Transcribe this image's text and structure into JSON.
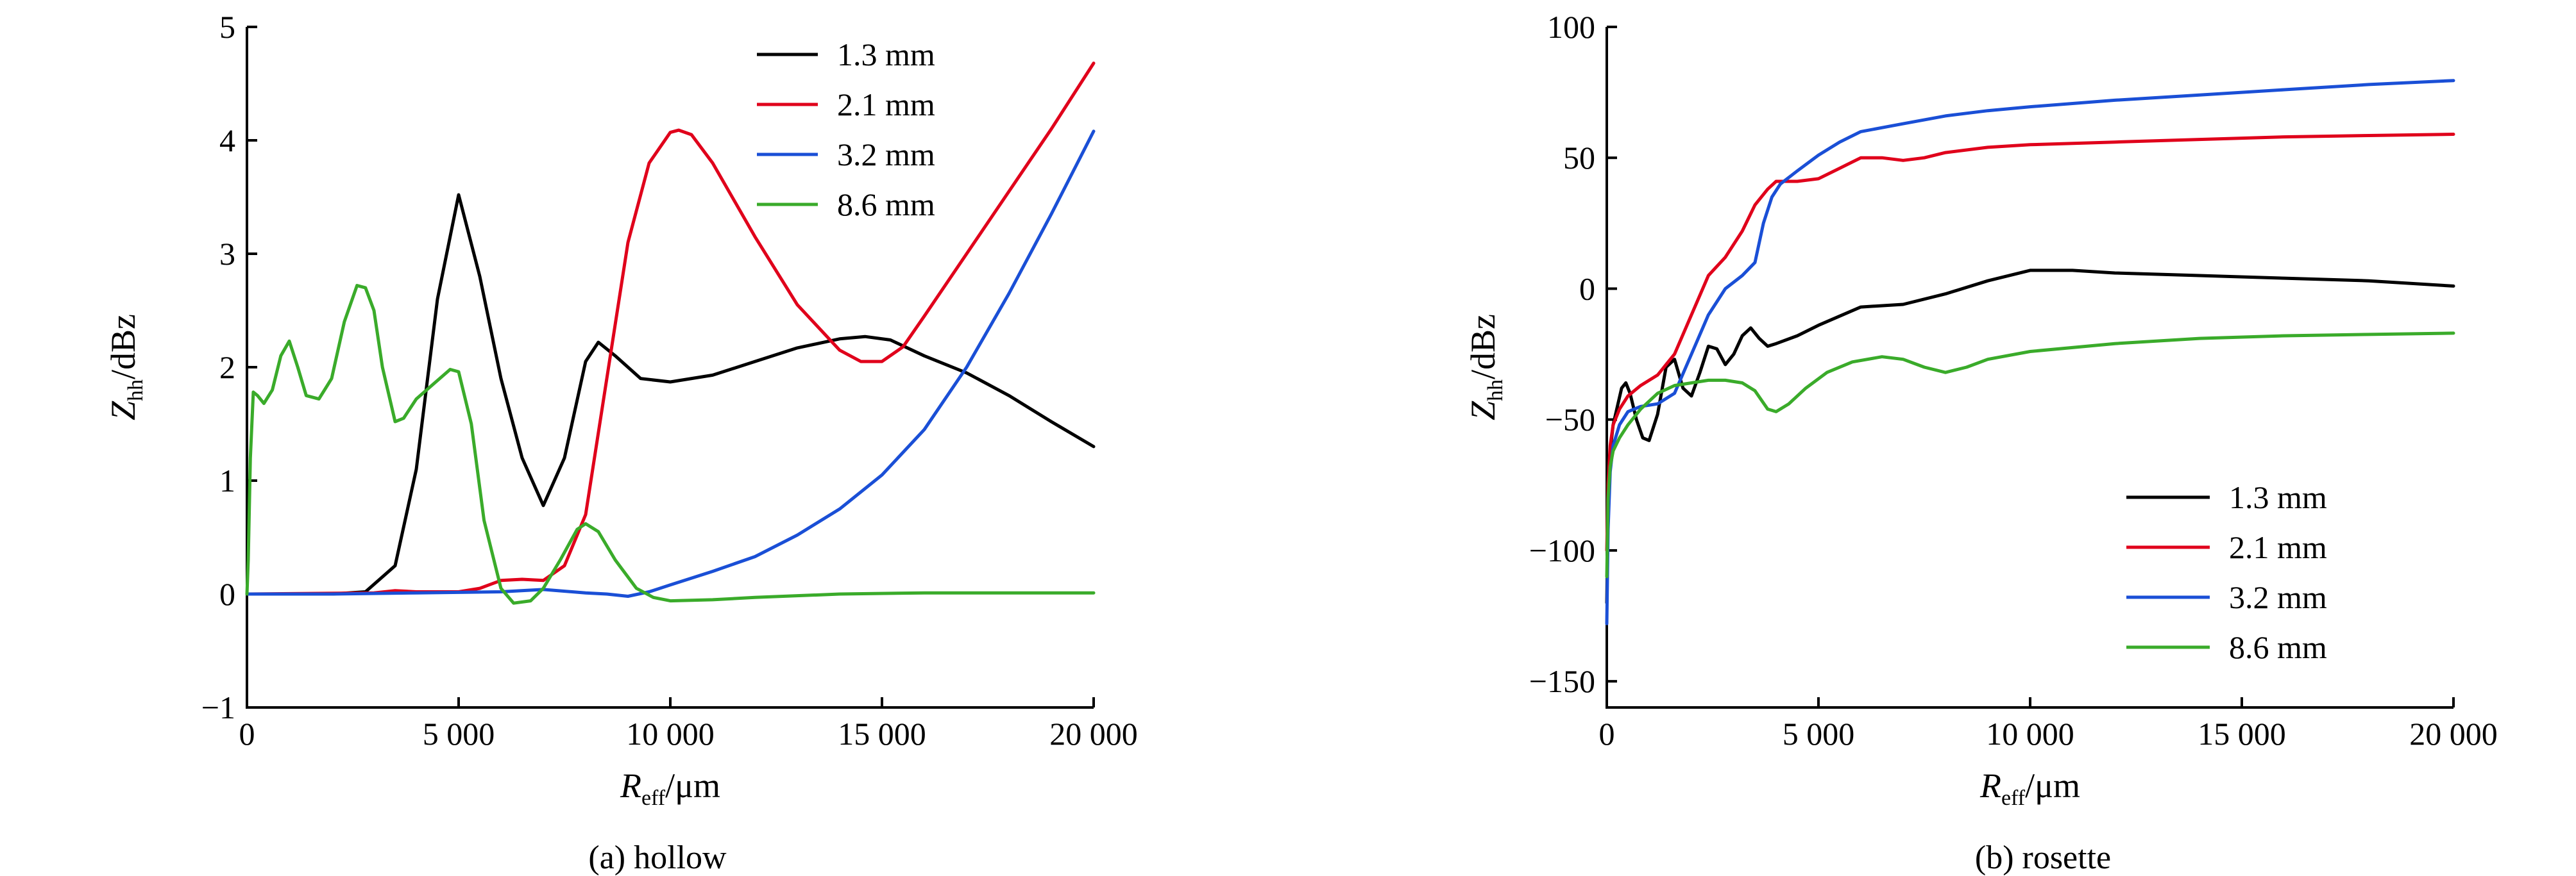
{
  "chart_data": [
    {
      "type": "line",
      "caption": "(a) hollow",
      "xlabel": {
        "main": "R",
        "sub": "eff",
        "unit": "/μm"
      },
      "ylabel": {
        "main": "Z",
        "sub": "hh",
        "unit": "/dBz"
      },
      "xlim": [
        0,
        20000
      ],
      "ylim": [
        -1,
        5
      ],
      "xticks": [
        0,
        5000,
        10000,
        15000,
        20000
      ],
      "xtick_labels": [
        "0",
        "5 000",
        "10 000",
        "15 000",
        "20 000"
      ],
      "yticks": [
        -1,
        0,
        1,
        2,
        3,
        4,
        5
      ],
      "ytick_labels": [
        "−1",
        "0",
        "1",
        "2",
        "3",
        "4",
        "5"
      ],
      "legend_position": "top-right",
      "series": [
        {
          "name": "1.3 mm",
          "color": "#000000",
          "x": [
            0,
            1000,
            2000,
            2800,
            3500,
            4000,
            4500,
            5000,
            5500,
            6000,
            6500,
            7000,
            7500,
            8000,
            8300,
            8700,
            9300,
            10000,
            11000,
            12000,
            13000,
            14000,
            14600,
            15200,
            16000,
            17000,
            18000,
            19000,
            20000
          ],
          "y": [
            0,
            0,
            0,
            0.02,
            0.25,
            1.1,
            2.6,
            3.52,
            2.8,
            1.9,
            1.2,
            0.78,
            1.2,
            2.05,
            2.22,
            2.1,
            1.9,
            1.87,
            1.93,
            2.05,
            2.17,
            2.25,
            2.27,
            2.24,
            2.1,
            1.95,
            1.75,
            1.52,
            1.3
          ]
        },
        {
          "name": "2.1 mm",
          "color": "#e0001b",
          "x": [
            0,
            3000,
            3500,
            4000,
            5000,
            5500,
            6000,
            6500,
            7000,
            7500,
            8000,
            8500,
            9000,
            9500,
            10000,
            10200,
            10500,
            11000,
            12000,
            13000,
            14000,
            14500,
            15000,
            15500,
            16000,
            17000,
            18000,
            19000,
            20000
          ],
          "y": [
            0,
            0.01,
            0.03,
            0.02,
            0.02,
            0.05,
            0.12,
            0.13,
            0.12,
            0.25,
            0.7,
            1.9,
            3.1,
            3.8,
            4.07,
            4.09,
            4.05,
            3.8,
            3.15,
            2.55,
            2.15,
            2.05,
            2.05,
            2.18,
            2.45,
            3.0,
            3.55,
            4.1,
            4.68
          ]
        },
        {
          "name": "3.2 mm",
          "color": "#1a4fd6",
          "x": [
            0,
            2000,
            4000,
            6000,
            7000,
            8000,
            8500,
            9000,
            9500,
            10000,
            11000,
            12000,
            13000,
            14000,
            15000,
            16000,
            17000,
            18000,
            19000,
            20000
          ],
          "y": [
            0,
            0,
            0.01,
            0.02,
            0.04,
            0.01,
            0,
            -0.02,
            0.02,
            0.08,
            0.2,
            0.33,
            0.52,
            0.75,
            1.05,
            1.45,
            2.0,
            2.65,
            3.35,
            4.08
          ]
        },
        {
          "name": "8.6 mm",
          "color": "#3aab2a",
          "x": [
            0,
            30,
            80,
            150,
            250,
            400,
            600,
            800,
            1000,
            1200,
            1400,
            1700,
            2000,
            2300,
            2600,
            2800,
            3000,
            3200,
            3500,
            3700,
            4000,
            4400,
            4800,
            5000,
            5300,
            5600,
            6000,
            6300,
            6700,
            7000,
            7400,
            7800,
            8000,
            8300,
            8700,
            9200,
            9600,
            10000,
            11000,
            12000,
            14000,
            16000,
            18000,
            20000
          ],
          "y": [
            0,
            0.3,
            1.2,
            1.78,
            1.75,
            1.68,
            1.8,
            2.1,
            2.23,
            2.0,
            1.75,
            1.72,
            1.9,
            2.4,
            2.72,
            2.7,
            2.5,
            2.0,
            1.52,
            1.55,
            1.72,
            1.85,
            1.98,
            1.96,
            1.5,
            0.65,
            0.05,
            -0.08,
            -0.06,
            0.05,
            0.3,
            0.57,
            0.62,
            0.55,
            0.3,
            0.05,
            -0.03,
            -0.06,
            -0.05,
            -0.03,
            0,
            0.01,
            0.01,
            0.01
          ]
        }
      ]
    },
    {
      "type": "line",
      "caption": "(b) rosette",
      "xlabel": {
        "main": "R",
        "sub": "eff",
        "unit": "/μm"
      },
      "ylabel": {
        "main": "Z",
        "sub": "hh",
        "unit": "/dBz"
      },
      "xlim": [
        0,
        20000
      ],
      "ylim": [
        -160,
        100
      ],
      "xticks": [
        0,
        5000,
        10000,
        15000,
        20000
      ],
      "xtick_labels": [
        "0",
        "5 000",
        "10 000",
        "15 000",
        "20 000"
      ],
      "yticks": [
        -150,
        -100,
        -50,
        0,
        50,
        100
      ],
      "ytick_labels": [
        "−150",
        "−100",
        "−50",
        "0",
        "50",
        "100"
      ],
      "legend_position": "bottom-right",
      "series": [
        {
          "name": "1.3 mm",
          "color": "#000000",
          "x": [
            0,
            30,
            80,
            150,
            250,
            350,
            450,
            550,
            700,
            850,
            1000,
            1200,
            1400,
            1600,
            1800,
            2000,
            2200,
            2400,
            2600,
            2800,
            3000,
            3200,
            3400,
            3600,
            3800,
            4000,
            4500,
            5000,
            6000,
            7000,
            8000,
            9000,
            10000,
            11000,
            12000,
            14000,
            16000,
            18000,
            20000
          ],
          "y": [
            -120,
            -85,
            -62,
            -52,
            -45,
            -38,
            -36,
            -40,
            -50,
            -57,
            -58,
            -48,
            -30,
            -27,
            -38,
            -41,
            -32,
            -22,
            -23,
            -29,
            -25,
            -18,
            -15,
            -19,
            -22,
            -21,
            -18,
            -14,
            -7,
            -6,
            -2,
            3,
            7,
            7,
            6,
            5,
            4,
            3,
            1
          ]
        },
        {
          "name": "2.1 mm",
          "color": "#e0001b",
          "x": [
            0,
            30,
            80,
            150,
            300,
            500,
            800,
            1200,
            1600,
            2000,
            2400,
            2800,
            3200,
            3500,
            3800,
            4000,
            4500,
            5000,
            5500,
            6000,
            6500,
            7000,
            7500,
            8000,
            9000,
            10000,
            12000,
            14000,
            16000,
            18000,
            20000
          ],
          "y": [
            -100,
            -75,
            -60,
            -52,
            -46,
            -41,
            -37,
            -33,
            -25,
            -10,
            5,
            12,
            22,
            32,
            38,
            41,
            41,
            42,
            46,
            50,
            50,
            49,
            50,
            52,
            54,
            55,
            56,
            57,
            58,
            58.5,
            59
          ]
        },
        {
          "name": "3.2 mm",
          "color": "#1a4fd6",
          "x": [
            0,
            30,
            80,
            150,
            300,
            500,
            800,
            1200,
            1600,
            2000,
            2400,
            2800,
            3200,
            3500,
            3700,
            3900,
            4100,
            4500,
            5000,
            5500,
            6000,
            7000,
            8000,
            9000,
            10000,
            12000,
            14000,
            16000,
            18000,
            20000
          ],
          "y": [
            -128,
            -92,
            -70,
            -60,
            -52,
            -47,
            -45,
            -44,
            -40,
            -25,
            -10,
            0,
            5,
            10,
            25,
            35,
            40,
            45,
            51,
            56,
            60,
            63,
            66,
            68,
            69.5,
            72,
            74,
            76,
            78,
            79.5
          ]
        },
        {
          "name": "8.6 mm",
          "color": "#3aab2a",
          "x": [
            0,
            30,
            80,
            150,
            300,
            500,
            800,
            1200,
            1600,
            2000,
            2400,
            2800,
            3200,
            3500,
            3800,
            4000,
            4300,
            4700,
            5200,
            5800,
            6500,
            7000,
            7500,
            8000,
            8500,
            9000,
            10000,
            12000,
            14000,
            16000,
            18000,
            20000
          ],
          "y": [
            -110,
            -80,
            -68,
            -62,
            -57,
            -52,
            -46,
            -40,
            -37,
            -36,
            -35,
            -35,
            -36,
            -39,
            -46,
            -47,
            -44,
            -38,
            -32,
            -28,
            -26,
            -27,
            -30,
            -32,
            -30,
            -27,
            -24,
            -21,
            -19,
            -18,
            -17.5,
            -17
          ]
        }
      ]
    }
  ]
}
